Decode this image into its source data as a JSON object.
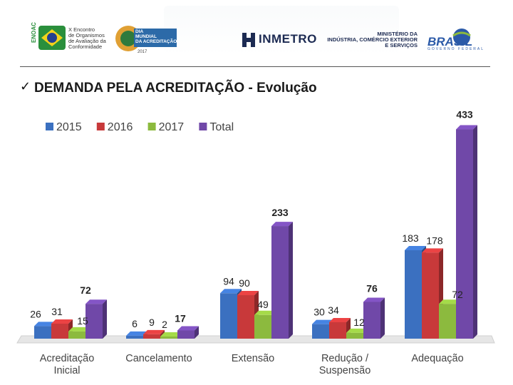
{
  "header": {
    "enoac_badge": "ENOAC",
    "enoac_lines": [
      "X Encontro",
      "de Organismos",
      "de Avaliação da",
      "Conformidade"
    ],
    "dia_lines": [
      "DIA",
      "MUNDIAL",
      "DA ACREDITAÇÃO"
    ],
    "dia_year": "2017",
    "inmetro": "INMETRO",
    "ministerio_lines": [
      "MINISTÉRIO DA",
      "INDÚSTRIA, COMÉRCIO EXTERIOR",
      "E SERVIÇOS"
    ],
    "brasil": "BRASIL",
    "brasil_sub": "GOVERNO FEDERAL"
  },
  "slide": {
    "check_mark": "✓",
    "title": "DEMANDA PELA ACREDITAÇÃO - Evolução"
  },
  "chart_data": {
    "type": "bar",
    "title": "DEMANDA PELA ACREDITAÇÃO - Evolução",
    "categories": [
      [
        "Acreditação",
        "Inicial"
      ],
      [
        "Cancelamento"
      ],
      [
        "Extensão"
      ],
      [
        "Redução /",
        "Suspensão"
      ],
      [
        "Adequação"
      ]
    ],
    "series": [
      {
        "name": "2015",
        "color": "#3b70c0",
        "values": [
          26,
          6,
          94,
          30,
          183
        ]
      },
      {
        "name": "2016",
        "color": "#c8393a",
        "values": [
          31,
          9,
          90,
          34,
          178
        ]
      },
      {
        "name": "2017",
        "color": "#8cba3e",
        "values": [
          15,
          2,
          49,
          12,
          72
        ]
      },
      {
        "name": "Total",
        "color": "#7048a8",
        "values": [
          72,
          17,
          233,
          76,
          433
        ]
      }
    ],
    "ylim": [
      0,
      450
    ],
    "xlabel": "",
    "ylabel": "",
    "legend": "top-left",
    "grid": false
  }
}
